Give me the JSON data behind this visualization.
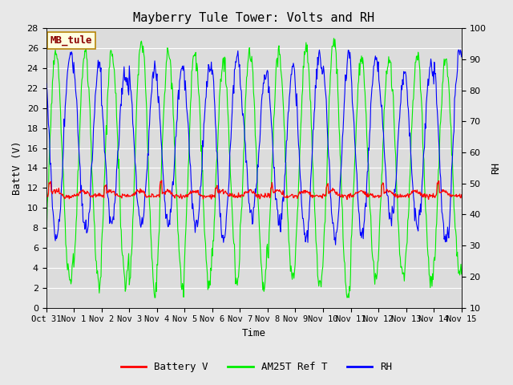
{
  "title": "Mayberry Tule Tower: Volts and RH",
  "xlabel": "Time",
  "ylabel_left": "BattV (V)",
  "ylabel_right": "RH",
  "annotation_text": "MB_tule",
  "xlim_start": 0,
  "xlim_end": 15,
  "ylim_left": [
    0,
    28
  ],
  "ylim_right": [
    10,
    100
  ],
  "yticks_left": [
    0,
    2,
    4,
    6,
    8,
    10,
    12,
    14,
    16,
    18,
    20,
    22,
    24,
    26,
    28
  ],
  "yticks_right": [
    10,
    20,
    30,
    40,
    50,
    60,
    70,
    80,
    90,
    100
  ],
  "xtick_labels": [
    "Oct 31",
    "Nov 1",
    "Nov 2",
    "Nov 3",
    "Nov 4",
    "Nov 5",
    "Nov 6",
    "Nov 7",
    "Nov 8",
    "Nov 9",
    "Nov 10",
    "Nov 11",
    "Nov 12",
    "Nov 13",
    "Nov 14",
    "Nov 15"
  ],
  "color_battery": "#FF0000",
  "color_am25t": "#00EE00",
  "color_rh": "#0000FF",
  "fig_facecolor": "#E8E8E8",
  "axes_facecolor": "#DCDCDC",
  "grid_color": "#FFFFFF",
  "legend_labels": [
    "Battery V",
    "AM25T Ref T",
    "RH"
  ],
  "title_fontsize": 11,
  "axis_label_fontsize": 9,
  "tick_fontsize": 8,
  "legend_fontsize": 9
}
